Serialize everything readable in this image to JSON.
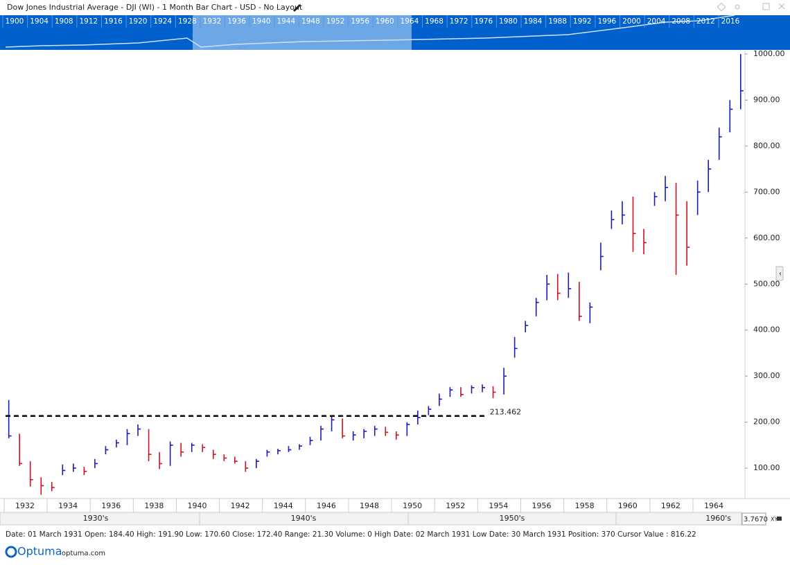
{
  "header": {
    "title": "Dow Jones Industrial Average - DJI (WI) - 1 Month Bar Chart - USD - No Layout"
  },
  "navigator": {
    "years": [
      1900,
      1904,
      1908,
      1912,
      1916,
      1920,
      1924,
      1928,
      1932,
      1936,
      1940,
      1944,
      1948,
      1952,
      1956,
      1960,
      1964,
      1968,
      1972,
      1976,
      1980,
      1984,
      1988,
      1992,
      1996,
      2000,
      2004,
      2008,
      2012,
      2016
    ]
  },
  "chart_data": {
    "type": "ohlc",
    "up_color": "#1a1ab8",
    "down_color": "#d0101e",
    "x": [
      1931.25,
      1931.75,
      1932.25,
      1932.75,
      1933.25,
      1933.75,
      1934.25,
      1934.75,
      1935.25,
      1935.75,
      1936.25,
      1936.75,
      1937.25,
      1937.75,
      1938.25,
      1938.75,
      1939.25,
      1939.75,
      1940.25,
      1940.75,
      1941.25,
      1941.75,
      1942.25,
      1942.75,
      1943.25,
      1943.75,
      1944.25,
      1944.75,
      1945.25,
      1945.75,
      1946.25,
      1946.75,
      1947.25,
      1947.75,
      1948.25,
      1948.75,
      1949.25,
      1949.75,
      1950.25,
      1950.75,
      1951.25,
      1951.75,
      1952.25,
      1952.75,
      1953.25,
      1953.75,
      1954.25,
      1954.75,
      1955.25,
      1955.75,
      1956.25,
      1956.75,
      1957.25,
      1957.75,
      1958.25,
      1958.75,
      1959.25,
      1959.75,
      1960.25,
      1960.75,
      1961.25,
      1961.75,
      1962.25,
      1962.75,
      1963.25,
      1963.75,
      1964.25,
      1964.75,
      1965.25
    ],
    "high": [
      248,
      175,
      115,
      80,
      70,
      108,
      110,
      103,
      120,
      148,
      162,
      185,
      195,
      185,
      135,
      158,
      155,
      155,
      152,
      140,
      130,
      125,
      115,
      120,
      140,
      142,
      148,
      152,
      168,
      192,
      212,
      208,
      180,
      185,
      192,
      190,
      180,
      200,
      225,
      235,
      262,
      276,
      276,
      280,
      282,
      278,
      318,
      385,
      420,
      470,
      520,
      522,
      525,
      505,
      460,
      590,
      660,
      680,
      690,
      620,
      700,
      735,
      720,
      680,
      725,
      770,
      840,
      900,
      1000
    ],
    "low": [
      165,
      105,
      60,
      42,
      50,
      85,
      92,
      85,
      100,
      130,
      145,
      150,
      170,
      115,
      98,
      105,
      125,
      135,
      135,
      120,
      115,
      110,
      92,
      100,
      125,
      130,
      135,
      140,
      150,
      160,
      180,
      165,
      160,
      165,
      170,
      170,
      162,
      170,
      195,
      215,
      235,
      255,
      255,
      262,
      265,
      252,
      260,
      340,
      395,
      430,
      465,
      465,
      470,
      420,
      415,
      530,
      620,
      630,
      570,
      565,
      670,
      680,
      520,
      540,
      650,
      700,
      770,
      830,
      880
    ],
    "close": [
      170,
      110,
      75,
      62,
      58,
      95,
      100,
      93,
      110,
      140,
      155,
      175,
      185,
      130,
      110,
      150,
      135,
      150,
      145,
      130,
      122,
      115,
      100,
      115,
      135,
      138,
      140,
      148,
      160,
      185,
      205,
      170,
      172,
      180,
      185,
      178,
      172,
      195,
      210,
      228,
      250,
      270,
      260,
      275,
      275,
      265,
      300,
      360,
      410,
      460,
      500,
      480,
      490,
      430,
      450,
      560,
      640,
      650,
      610,
      590,
      690,
      710,
      650,
      580,
      700,
      750,
      820,
      880,
      920
    ],
    "xlim": [
      1931.1,
      1965.45
    ],
    "ylim": [
      37,
      1006
    ],
    "xticks": [
      1932,
      1934,
      1936,
      1938,
      1940,
      1942,
      1944,
      1946,
      1948,
      1950,
      1952,
      1954,
      1956,
      1958,
      1960,
      1962,
      1964
    ],
    "yticks": [
      {
        "value": 100,
        "label": "100.00"
      },
      {
        "value": 200,
        "label": "200.00"
      },
      {
        "value": 300,
        "label": "300.00"
      },
      {
        "value": 400,
        "label": "400.00"
      },
      {
        "value": 500,
        "label": "500.00"
      },
      {
        "value": 600,
        "label": "600.00"
      },
      {
        "value": 700,
        "label": "700.00"
      },
      {
        "value": 800,
        "label": "800.00"
      },
      {
        "value": 900,
        "label": "900.00"
      },
      {
        "value": 1000,
        "label": "1000.00"
      }
    ],
    "hline": {
      "value": 213.462,
      "x": [
        1931.1,
        1953.4
      ]
    }
  },
  "decades": [
    "1930's",
    "1940's",
    "1950's",
    "1960's"
  ],
  "status": "Date: 01 March 1931 Open: 184.40 High: 191.90 Low: 170.60 Close: 172.40 Range: 21.30 Volume: 0 High Date: 02 March 1931 Low Date: 30 March 1931 Position: 370 Cursor Value : 816.22",
  "footer": {
    "scale": "3.7670",
    "xy": "XY",
    "logo": "Optuma",
    "url": "optuma.com"
  }
}
